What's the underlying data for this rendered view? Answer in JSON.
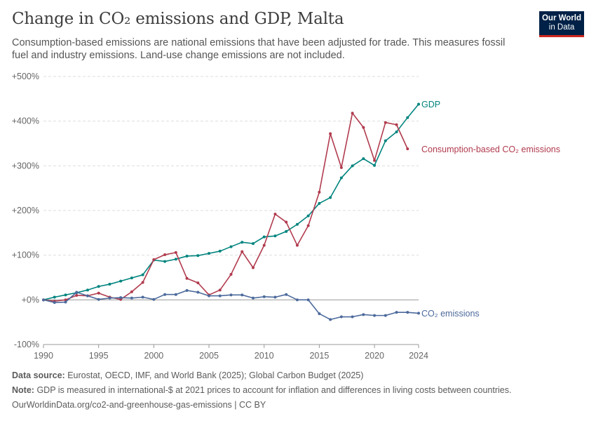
{
  "header": {
    "title": "Change in CO₂ emissions and GDP, Malta",
    "subtitle": "Consumption-based emissions are national emissions that have been adjusted for trade. This measures fossil fuel and industry emissions. Land-use change emissions are not included.",
    "logo_line1": "Our World",
    "logo_line2": "in Data"
  },
  "footer": {
    "source_label": "Data source:",
    "source_text": "Eurostat, OECD, IMF, and World Bank (2025); Global Carbon Budget (2025)",
    "note_label": "Note:",
    "note_text": "GDP is measured in international-$ at 2021 prices to account for inflation and differences in living costs between countries.",
    "url_text": "OurWorldinData.org/co2-and-greenhouse-gas-emissions | CC BY"
  },
  "colors": {
    "gdp": "#00847e",
    "consumption": "#b13b4e",
    "co2": "#4c6a9c",
    "grid": "#dddddd",
    "axis_text": "#666666"
  },
  "chart_data": {
    "type": "line",
    "xlim": [
      1990,
      2024
    ],
    "ylim": [
      -100,
      500
    ],
    "y_ticks": [
      -100,
      0,
      100,
      200,
      300,
      400,
      500
    ],
    "y_tick_labels": [
      "-100%",
      "+0%",
      "+100%",
      "+200%",
      "+300%",
      "+400%",
      "+500%"
    ],
    "x_ticks": [
      1990,
      1995,
      2000,
      2005,
      2010,
      2015,
      2020,
      2024
    ],
    "x_tick_labels": [
      "1990",
      "1995",
      "2000",
      "2005",
      "2010",
      "2015",
      "2020",
      "2024"
    ],
    "grid": true,
    "series": [
      {
        "name": "GDP",
        "color": "#00847e",
        "x": [
          1990,
          1991,
          1992,
          1993,
          1994,
          1995,
          1996,
          1997,
          1998,
          1999,
          2000,
          2001,
          2002,
          2003,
          2004,
          2005,
          2006,
          2007,
          2008,
          2009,
          2010,
          2011,
          2012,
          2013,
          2014,
          2015,
          2016,
          2017,
          2018,
          2019,
          2020,
          2021,
          2022,
          2023,
          2024
        ],
        "y": [
          0,
          6,
          11,
          16,
          22,
          30,
          35,
          42,
          49,
          56,
          89,
          86,
          91,
          98,
          99,
          104,
          109,
          119,
          129,
          126,
          141,
          143,
          153,
          169,
          188,
          216,
          229,
          273,
          300,
          316,
          301,
          356,
          376,
          408,
          438
        ]
      },
      {
        "name": "Consumption-based CO₂ emissions",
        "color": "#b13b4e",
        "x": [
          1990,
          1991,
          1992,
          1993,
          1994,
          1995,
          1996,
          1997,
          1998,
          1999,
          2000,
          2001,
          2002,
          2003,
          2004,
          2005,
          2006,
          2007,
          2008,
          2009,
          2010,
          2011,
          2012,
          2013,
          2014,
          2015,
          2016,
          2017,
          2018,
          2019,
          2020,
          2021,
          2022,
          2023,
          2024
        ],
        "y": [
          0,
          -3,
          0,
          10,
          9,
          15,
          6,
          1,
          18,
          39,
          90,
          101,
          106,
          48,
          38,
          11,
          22,
          57,
          108,
          72,
          122,
          192,
          174,
          122,
          166,
          241,
          372,
          296,
          418,
          386,
          312,
          397,
          392,
          338,
          null
        ],
        "y_final": 338
      },
      {
        "name": "CO₂ emissions",
        "color": "#4c6a9c",
        "x": [
          1990,
          1991,
          1992,
          1993,
          1994,
          1995,
          1996,
          1997,
          1998,
          1999,
          2000,
          2001,
          2002,
          2003,
          2004,
          2005,
          2006,
          2007,
          2008,
          2009,
          2010,
          2011,
          2012,
          2013,
          2014,
          2015,
          2016,
          2017,
          2018,
          2019,
          2020,
          2021,
          2022,
          2023,
          2024
        ],
        "y": [
          0,
          -6,
          -5,
          17,
          9,
          1,
          4,
          5,
          4,
          6,
          1,
          12,
          12,
          21,
          17,
          9,
          9,
          11,
          11,
          4,
          7,
          6,
          12,
          0,
          0,
          -31,
          -44,
          -38,
          -38,
          -33,
          -35,
          -35,
          -28,
          -28,
          -30
        ]
      }
    ]
  }
}
